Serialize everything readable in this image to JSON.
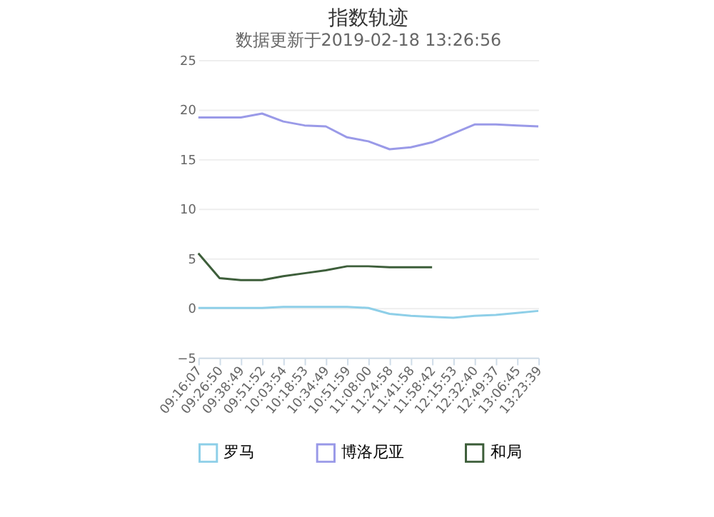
{
  "chart_data": {
    "type": "line",
    "title": "指数轨迹",
    "subtitle": "数据更新于2019-02-18 13:26:56",
    "categories": [
      "09:16:07",
      "09:26:50",
      "09:38:49",
      "09:51:52",
      "10:03:54",
      "10:18:53",
      "10:34:49",
      "10:51:59",
      "11:08:00",
      "11:24:58",
      "11:41:58",
      "11:58:42",
      "12:15:53",
      "12:32:40",
      "12:49:37",
      "13:06:45",
      "13:23:39"
    ],
    "series": [
      {
        "name": "罗马",
        "color": "#8ecfe8",
        "values": [
          0,
          0,
          0,
          0,
          0.1,
          0.1,
          0.1,
          0.1,
          0,
          -0.6,
          -0.8,
          -0.9,
          -1.0,
          -0.8,
          -0.7,
          -0.5,
          -0.3
        ]
      },
      {
        "name": "博洛尼亚",
        "color": "#9a9ae8",
        "values": [
          19.2,
          19.2,
          19.2,
          19.6,
          18.8,
          18.4,
          18.3,
          17.2,
          16.8,
          16.0,
          16.2,
          16.7,
          17.6,
          18.5,
          18.5,
          18.4,
          18.3
        ]
      },
      {
        "name": "和局",
        "color": "#3d5e3a",
        "values": [
          5.5,
          3.0,
          2.8,
          2.8,
          3.2,
          3.5,
          3.8,
          4.2,
          4.2,
          4.1,
          4.1,
          4.1,
          null,
          null,
          null,
          null,
          null
        ]
      }
    ],
    "ylim": [
      -5,
      25
    ],
    "yticks": [
      -5,
      0,
      5,
      10,
      15,
      20,
      25
    ],
    "grid": "y",
    "legend": "bottom",
    "marker": "none",
    "line_style": "solid"
  }
}
